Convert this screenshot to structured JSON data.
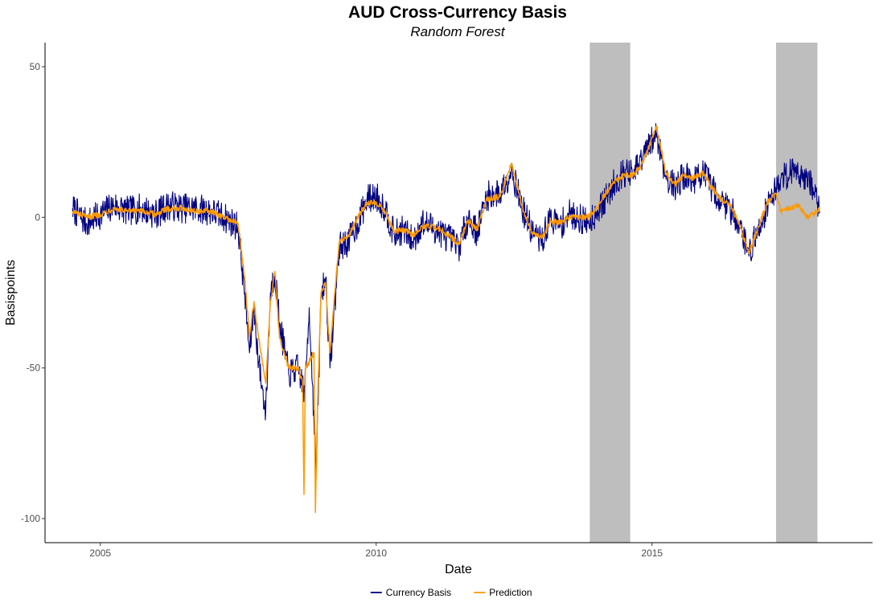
{
  "chart_data": {
    "type": "line",
    "title": "AUD Cross-Currency Basis",
    "subtitle": "Random Forest",
    "xlabel": "Date",
    "ylabel": "Basispoints",
    "xlim": [
      "2004-01-01",
      "2018-12-31"
    ],
    "ylim": [
      -108,
      58
    ],
    "x_ticks": [
      {
        "value": "2005-01-01",
        "label": "2005"
      },
      {
        "value": "2010-01-01",
        "label": "2010"
      },
      {
        "value": "2015-01-01",
        "label": "2015"
      }
    ],
    "y_ticks": [
      {
        "value": 50,
        "label": "50"
      },
      {
        "value": 0,
        "label": "0"
      },
      {
        "value": -50,
        "label": "-50"
      },
      {
        "value": -100,
        "label": "-100"
      }
    ],
    "grid": false,
    "legend_position": "bottom",
    "shaded_periods": [
      {
        "start": "2013-11-15",
        "end": "2014-08-10",
        "color": "#bebebe"
      },
      {
        "start": "2017-04-01",
        "end": "2017-12-31",
        "color": "#bebebe"
      }
    ],
    "series": [
      {
        "name": "Currency Basis",
        "color": "#000080",
        "noise": 5,
        "points": [
          [
            "2004-07-01",
            3
          ],
          [
            "2004-10-01",
            -2
          ],
          [
            "2005-01-01",
            1
          ],
          [
            "2005-04-01",
            4
          ],
          [
            "2005-07-01",
            2
          ],
          [
            "2005-10-01",
            3
          ],
          [
            "2006-01-01",
            1
          ],
          [
            "2006-04-01",
            4
          ],
          [
            "2006-07-01",
            3
          ],
          [
            "2006-10-01",
            3
          ],
          [
            "2007-01-01",
            2
          ],
          [
            "2007-04-01",
            0
          ],
          [
            "2007-07-01",
            -3
          ],
          [
            "2007-08-15",
            -25
          ],
          [
            "2007-09-15",
            -45
          ],
          [
            "2007-10-15",
            -30
          ],
          [
            "2007-11-15",
            -48
          ],
          [
            "2008-01-01",
            -65
          ],
          [
            "2008-02-01",
            -25
          ],
          [
            "2008-03-01",
            -18
          ],
          [
            "2008-04-01",
            -35
          ],
          [
            "2008-06-01",
            -52
          ],
          [
            "2008-08-01",
            -50
          ],
          [
            "2008-09-15",
            -58
          ],
          [
            "2008-10-15",
            -30
          ],
          [
            "2008-12-01",
            -85
          ],
          [
            "2009-01-01",
            -25
          ],
          [
            "2009-02-01",
            -20
          ],
          [
            "2009-03-01",
            -50
          ],
          [
            "2009-05-01",
            -10
          ],
          [
            "2009-07-01",
            -8
          ],
          [
            "2009-09-01",
            -2
          ],
          [
            "2009-11-01",
            6
          ],
          [
            "2010-01-01",
            7
          ],
          [
            "2010-03-01",
            3
          ],
          [
            "2010-05-01",
            -6
          ],
          [
            "2010-07-01",
            -4
          ],
          [
            "2010-09-01",
            -8
          ],
          [
            "2010-11-01",
            -2
          ],
          [
            "2011-01-01",
            -3
          ],
          [
            "2011-03-01",
            -5
          ],
          [
            "2011-05-01",
            -7
          ],
          [
            "2011-07-01",
            -10
          ],
          [
            "2011-09-01",
            0
          ],
          [
            "2011-11-01",
            -5
          ],
          [
            "2012-01-01",
            7
          ],
          [
            "2012-04-01",
            8
          ],
          [
            "2012-06-15",
            16
          ],
          [
            "2012-09-01",
            2
          ],
          [
            "2012-11-01",
            -5
          ],
          [
            "2013-01-01",
            -8
          ],
          [
            "2013-03-01",
            0
          ],
          [
            "2013-05-01",
            -3
          ],
          [
            "2013-07-01",
            1
          ],
          [
            "2013-09-01",
            0
          ],
          [
            "2013-11-01",
            -2
          ],
          [
            "2014-01-01",
            2
          ],
          [
            "2014-03-01",
            6
          ],
          [
            "2014-05-01",
            12
          ],
          [
            "2014-07-01",
            15
          ],
          [
            "2014-09-01",
            14
          ],
          [
            "2014-11-01",
            20
          ],
          [
            "2015-02-01",
            28
          ],
          [
            "2015-04-01",
            14
          ],
          [
            "2015-06-01",
            10
          ],
          [
            "2015-08-01",
            14
          ],
          [
            "2015-10-01",
            12
          ],
          [
            "2015-12-01",
            15
          ],
          [
            "2016-02-01",
            10
          ],
          [
            "2016-04-01",
            5
          ],
          [
            "2016-06-01",
            3
          ],
          [
            "2016-08-01",
            -2
          ],
          [
            "2016-10-01",
            -12
          ],
          [
            "2016-12-01",
            -5
          ],
          [
            "2017-02-01",
            4
          ],
          [
            "2017-04-01",
            10
          ],
          [
            "2017-06-01",
            14
          ],
          [
            "2017-08-01",
            16
          ],
          [
            "2017-10-01",
            14
          ],
          [
            "2017-12-01",
            10
          ],
          [
            "2018-01-15",
            2
          ]
        ]
      },
      {
        "name": "Prediction",
        "color": "#ff9900",
        "noise": 1,
        "points": [
          [
            "2004-07-01",
            2
          ],
          [
            "2004-10-01",
            0
          ],
          [
            "2005-01-01",
            1
          ],
          [
            "2005-04-01",
            3
          ],
          [
            "2005-07-01",
            2
          ],
          [
            "2005-10-01",
            2
          ],
          [
            "2006-01-01",
            1
          ],
          [
            "2006-04-01",
            3
          ],
          [
            "2006-07-01",
            3
          ],
          [
            "2006-10-01",
            2
          ],
          [
            "2007-01-01",
            2
          ],
          [
            "2007-04-01",
            0
          ],
          [
            "2007-07-01",
            -2
          ],
          [
            "2007-08-15",
            -20
          ],
          [
            "2007-09-15",
            -40
          ],
          [
            "2007-10-15",
            -28
          ],
          [
            "2007-11-15",
            -40
          ],
          [
            "2008-01-01",
            -55
          ],
          [
            "2008-02-01",
            -28
          ],
          [
            "2008-03-01",
            -18
          ],
          [
            "2008-04-01",
            -40
          ],
          [
            "2008-06-01",
            -50
          ],
          [
            "2008-08-01",
            -50
          ],
          [
            "2008-09-01",
            -55
          ],
          [
            "2008-09-10",
            -92
          ],
          [
            "2008-09-20",
            -50
          ],
          [
            "2008-11-15",
            -45
          ],
          [
            "2008-11-25",
            -98
          ],
          [
            "2008-12-10",
            -60
          ],
          [
            "2009-01-01",
            -25
          ],
          [
            "2009-02-01",
            -22
          ],
          [
            "2009-03-01",
            -45
          ],
          [
            "2009-05-01",
            -8
          ],
          [
            "2009-07-01",
            -6
          ],
          [
            "2009-09-01",
            0
          ],
          [
            "2009-11-01",
            5
          ],
          [
            "2010-01-01",
            5
          ],
          [
            "2010-03-01",
            2
          ],
          [
            "2010-05-01",
            -5
          ],
          [
            "2010-07-01",
            -4
          ],
          [
            "2010-09-01",
            -6
          ],
          [
            "2010-11-01",
            -3
          ],
          [
            "2011-01-01",
            -3
          ],
          [
            "2011-03-01",
            -4
          ],
          [
            "2011-05-01",
            -6
          ],
          [
            "2011-07-01",
            -9
          ],
          [
            "2011-09-01",
            -1
          ],
          [
            "2011-11-01",
            -4
          ],
          [
            "2012-01-01",
            6
          ],
          [
            "2012-04-01",
            7
          ],
          [
            "2012-06-15",
            18
          ],
          [
            "2012-09-01",
            2
          ],
          [
            "2012-11-01",
            -5
          ],
          [
            "2013-01-01",
            -7
          ],
          [
            "2013-03-01",
            -1
          ],
          [
            "2013-05-01",
            -2
          ],
          [
            "2013-07-01",
            0
          ],
          [
            "2013-09-01",
            0
          ],
          [
            "2013-11-01",
            0
          ],
          [
            "2014-01-01",
            3
          ],
          [
            "2014-03-01",
            8
          ],
          [
            "2014-05-01",
            12
          ],
          [
            "2014-07-01",
            14
          ],
          [
            "2014-09-01",
            14
          ],
          [
            "2014-11-01",
            18
          ],
          [
            "2015-02-01",
            30
          ],
          [
            "2015-04-01",
            15
          ],
          [
            "2015-06-01",
            11
          ],
          [
            "2015-08-01",
            14
          ],
          [
            "2015-10-01",
            13
          ],
          [
            "2015-12-01",
            15
          ],
          [
            "2016-02-01",
            10
          ],
          [
            "2016-04-01",
            6
          ],
          [
            "2016-06-01",
            4
          ],
          [
            "2016-08-01",
            -2
          ],
          [
            "2016-10-01",
            -12
          ],
          [
            "2016-12-01",
            -4
          ],
          [
            "2017-02-01",
            5
          ],
          [
            "2017-04-01",
            8
          ],
          [
            "2017-05-01",
            2
          ],
          [
            "2017-07-01",
            3
          ],
          [
            "2017-09-01",
            4
          ],
          [
            "2017-10-15",
            0
          ],
          [
            "2017-12-01",
            1
          ],
          [
            "2018-01-15",
            3
          ]
        ]
      }
    ]
  }
}
